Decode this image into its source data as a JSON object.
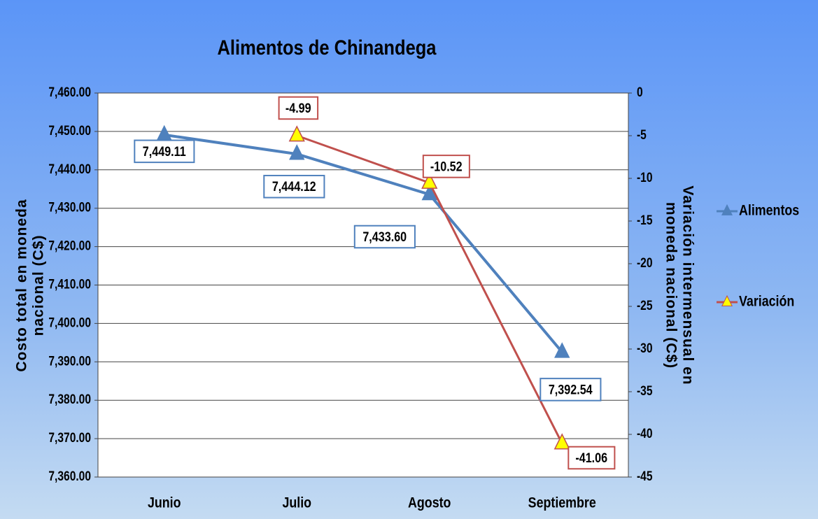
{
  "chart_data": {
    "type": "line",
    "title": "Alimentos de Chinandega",
    "ylabel": [
      "Costo total en moneda",
      "nacional  (C$)"
    ],
    "y2label": [
      "Variación intermensual en",
      "moneda nacional (C$)"
    ],
    "categories": [
      "Junio",
      "Julio",
      "Agosto",
      "Septiembre"
    ],
    "series": [
      {
        "name": "Alimentos",
        "color": "#4f81bd",
        "values": [
          7449.11,
          7444.12,
          7433.6,
          7392.54
        ],
        "value_labels": [
          "7,449.11",
          "7,444.12",
          "7,433.60",
          "7,392.54"
        ]
      },
      {
        "name": "Variación",
        "color": "#c0504d",
        "axis": "y2",
        "values": [
          null,
          -4.99,
          -10.52,
          -41.06
        ]
      }
    ],
    "ylim": [
      7360,
      7460
    ],
    "yticks": [
      {
        "value": 7360,
        "label": "7,360.00"
      },
      {
        "value": 7370,
        "label": "7,370.00"
      },
      {
        "value": 7380,
        "label": "7,380.00"
      },
      {
        "value": 7390,
        "label": "7,390.00"
      },
      {
        "value": 7400,
        "label": "7,400.00"
      },
      {
        "value": 7410,
        "label": "7,410.00"
      },
      {
        "value": 7420,
        "label": "7,420.00"
      },
      {
        "value": 7430,
        "label": "7,430.00"
      },
      {
        "value": 7440,
        "label": "7,440.00"
      },
      {
        "value": 7450,
        "label": "7,450.00"
      },
      {
        "value": 7460,
        "label": "7,460.00"
      }
    ],
    "y2lim": [
      -45,
      0
    ],
    "y2ticks": [
      -45,
      -40,
      -35,
      -30,
      -25,
      -20,
      -15,
      -10,
      -5,
      0
    ],
    "grid": true,
    "legend": "right"
  }
}
